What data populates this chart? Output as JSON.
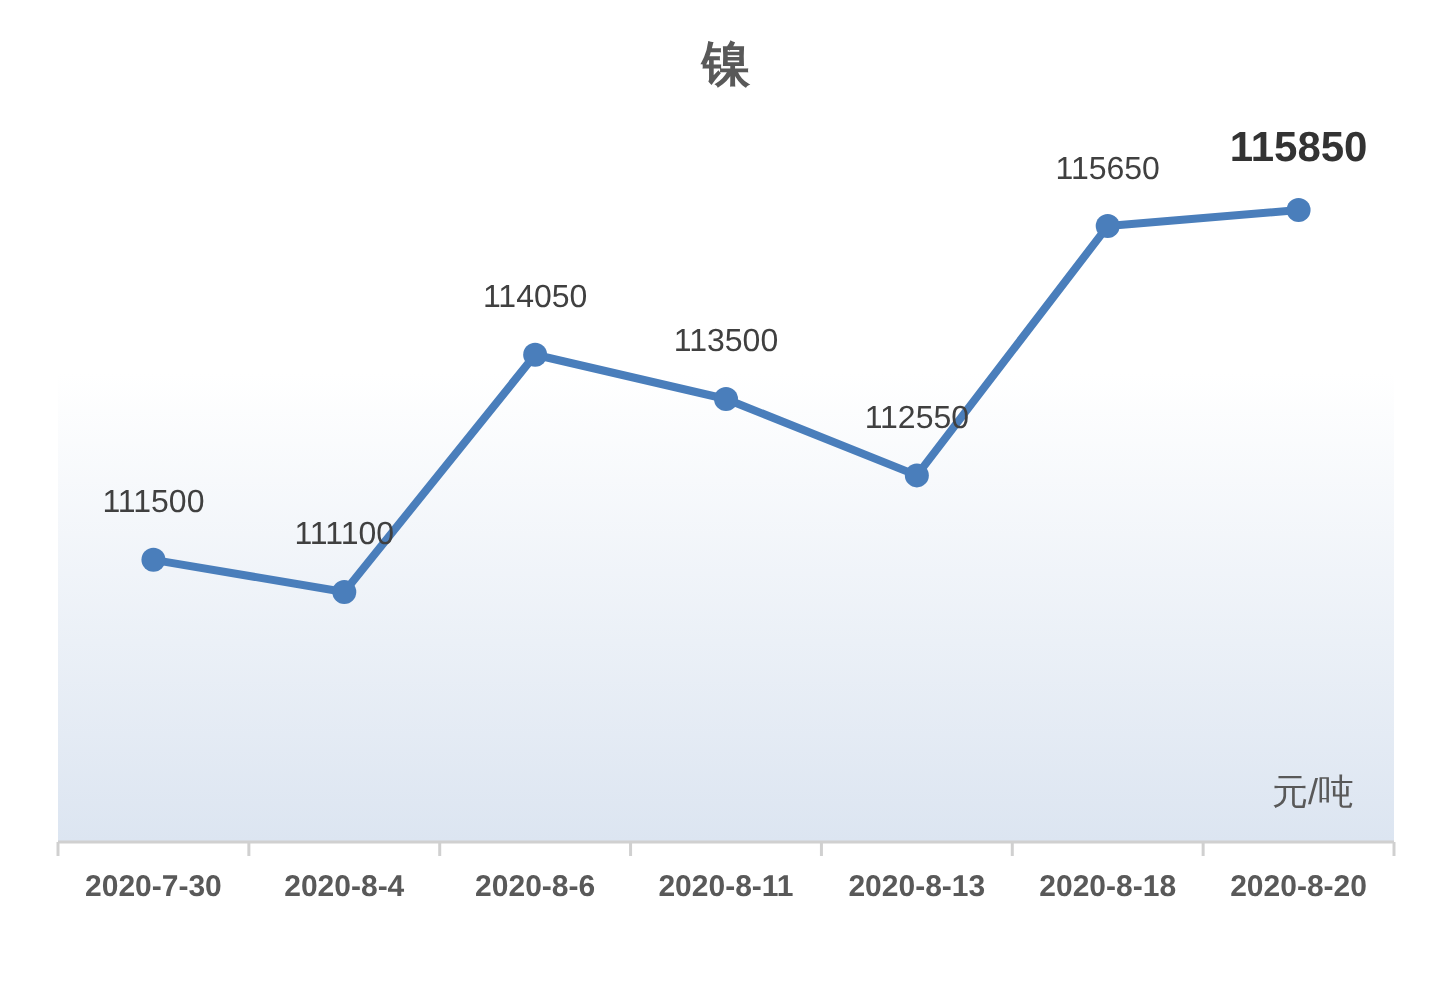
{
  "chart_data": {
    "type": "line",
    "title": "镍",
    "categories": [
      "2020-7-30",
      "2020-8-4",
      "2020-8-6",
      "2020-8-11",
      "2020-8-13",
      "2020-8-18",
      "2020-8-20"
    ],
    "series": [
      {
        "color": "#4a7ebb",
        "values": [
          111500,
          111100,
          114050,
          113500,
          112550,
          115650,
          115850
        ]
      }
    ],
    "data_labels": true,
    "marker": "circle",
    "tick_labels": "x",
    "annotations": [
      "元/吨"
    ]
  }
}
